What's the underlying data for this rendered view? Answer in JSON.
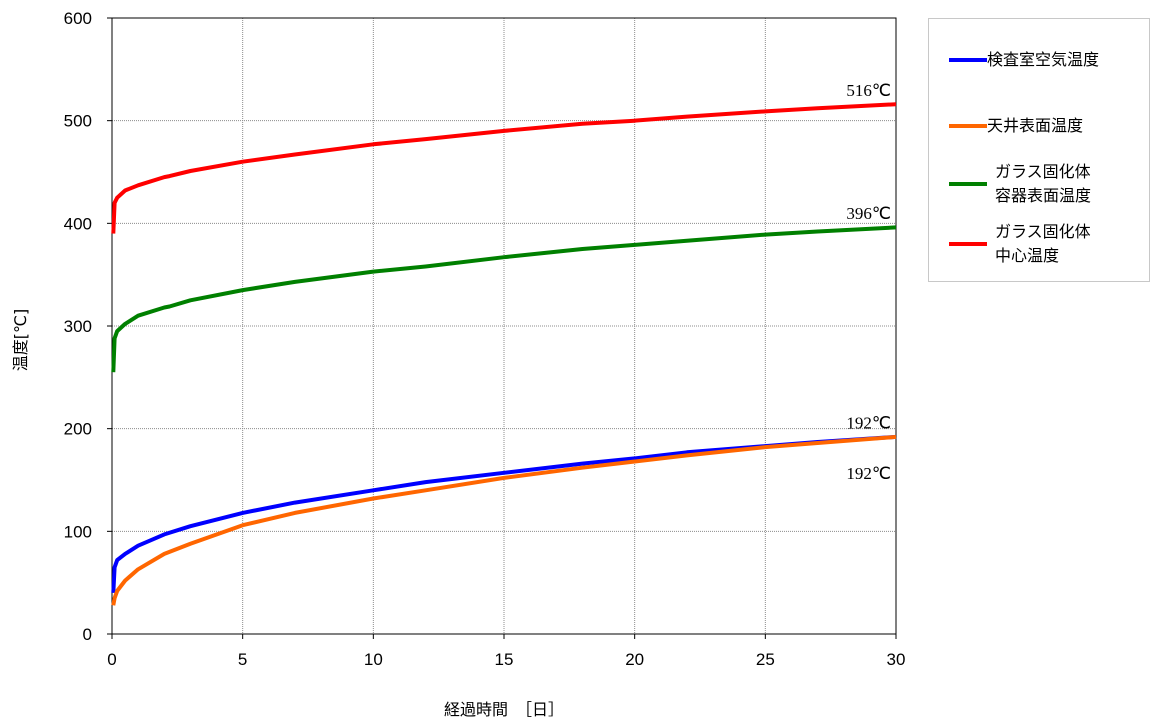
{
  "chart_data": {
    "type": "line",
    "xlabel": "経過時間　［日］",
    "ylabel": "温度[℃]",
    "xlim": [
      0,
      30
    ],
    "ylim": [
      0,
      600
    ],
    "xticks": [
      "0",
      "5",
      "10",
      "15",
      "20",
      "25",
      "30"
    ],
    "yticks": [
      "0",
      "100",
      "200",
      "300",
      "400",
      "500",
      "600"
    ],
    "grid": true,
    "legend_position": "right",
    "series": [
      {
        "name": "検査室空気温度",
        "color": "#0000ff",
        "x": [
          0.05,
          0.1,
          0.2,
          0.5,
          1,
          2,
          3,
          5,
          7,
          10,
          12,
          15,
          18,
          20,
          22,
          25,
          27,
          30
        ],
        "y": [
          40,
          65,
          72,
          78,
          86,
          97,
          105,
          118,
          128,
          140,
          148,
          157,
          166,
          171,
          177,
          183,
          187,
          192
        ]
      },
      {
        "name": "天井表面温度",
        "color": "#ff6600",
        "x": [
          0.05,
          0.1,
          0.2,
          0.5,
          1,
          2,
          3,
          5,
          7,
          10,
          12,
          15,
          18,
          20,
          22,
          25,
          27,
          30
        ],
        "y": [
          28,
          35,
          42,
          52,
          63,
          78,
          88,
          106,
          118,
          132,
          140,
          152,
          162,
          168,
          174,
          182,
          186,
          192
        ]
      },
      {
        "name": "ガラス固化体\n容器表面温度",
        "color": "#008000",
        "x": [
          0.05,
          0.1,
          0.2,
          0.5,
          1,
          2,
          2.2,
          3,
          5,
          7,
          10,
          12,
          15,
          18,
          20,
          22,
          25,
          27,
          30
        ],
        "y": [
          255,
          288,
          295,
          302,
          310,
          318,
          319,
          325,
          335,
          343,
          353,
          358,
          367,
          375,
          379,
          383,
          389,
          392,
          396
        ]
      },
      {
        "name": "ガラス固化体\n中心温度",
        "color": "#ff0000",
        "x": [
          0.05,
          0.1,
          0.2,
          0.5,
          1,
          2,
          2.2,
          3,
          5,
          7,
          10,
          12,
          15,
          18,
          20,
          22,
          25,
          27,
          30
        ],
        "y": [
          390,
          420,
          425,
          432,
          437,
          445,
          446,
          451,
          460,
          467,
          477,
          482,
          490,
          497,
          500,
          504,
          509,
          512,
          516
        ]
      }
    ],
    "annotations": [
      {
        "text": "516℃",
        "x": 28.1,
        "y": 524
      },
      {
        "text": "396℃",
        "x": 28.1,
        "y": 404
      },
      {
        "text": "192℃",
        "x": 28.1,
        "y": 200
      },
      {
        "text": "192℃",
        "x": 28.1,
        "y": 151
      }
    ]
  }
}
